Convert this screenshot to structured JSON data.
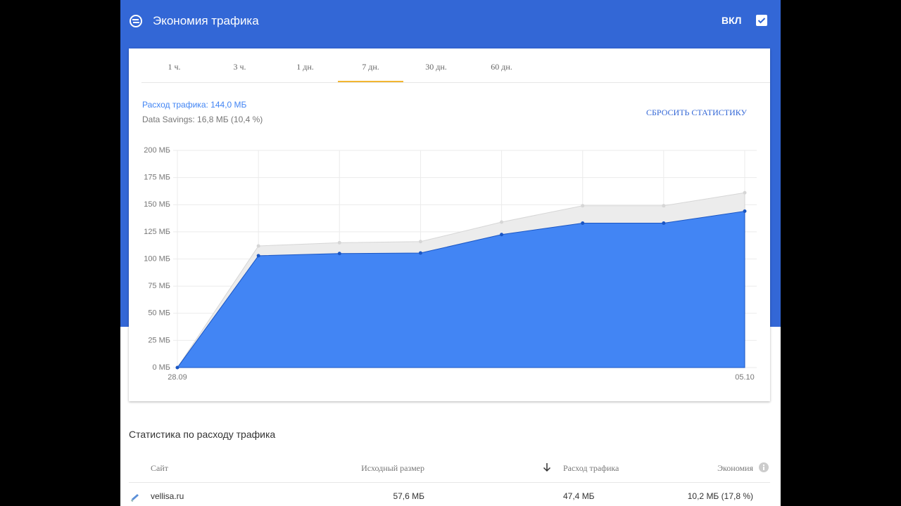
{
  "header": {
    "title": "Экономия трафика",
    "toggle_label": "ВКЛ"
  },
  "tabs": {
    "items": [
      "1 ч.",
      "3 ч.",
      "1 дн.",
      "7 дн.",
      "30 дн.",
      "60 дн."
    ],
    "selected": 3
  },
  "summary": {
    "usage": "Расход трафика: 144,0 МБ",
    "savings": "Data Savings: 16,8 МБ (10,4 %)",
    "reset": "СБРОСИТЬ СТАТИСТИКУ"
  },
  "chart_data": {
    "type": "area",
    "categories": [
      "28.09",
      null,
      null,
      null,
      null,
      null,
      null,
      "05.10"
    ],
    "series": [
      {
        "color": "#ececec",
        "line_color": "#d6d6d6",
        "values": [
          0,
          112,
          115,
          116,
          134,
          149,
          149,
          161
        ]
      },
      {
        "color": "#4285f4",
        "line_color": "#1a56c4",
        "values": [
          0,
          103,
          105,
          105.5,
          122.5,
          133,
          133,
          144
        ]
      }
    ],
    "ylim": [
      0,
      200
    ],
    "yticks": [
      {
        "value": 0,
        "label": "0 МБ"
      },
      {
        "value": 25,
        "label": "25 МБ"
      },
      {
        "value": 50,
        "label": "50 МБ"
      },
      {
        "value": 75,
        "label": "75 МБ"
      },
      {
        "value": 100,
        "label": "100 МБ"
      },
      {
        "value": 125,
        "label": "125 МБ"
      },
      {
        "value": 150,
        "label": "150 МБ"
      },
      {
        "value": 175,
        "label": "175 МБ"
      },
      {
        "value": 200,
        "label": "200 МБ"
      }
    ],
    "grid": true
  },
  "table": {
    "title": "Статистика по расходу трафика",
    "columns": [
      "Сайт",
      "Исходный размер",
      "Расход трафика",
      "Экономия"
    ],
    "rows": [
      [
        "vellisa.ru",
        "57,6 МБ",
        "47,4 МБ",
        "10,2 МБ (17,8 %)"
      ]
    ]
  }
}
